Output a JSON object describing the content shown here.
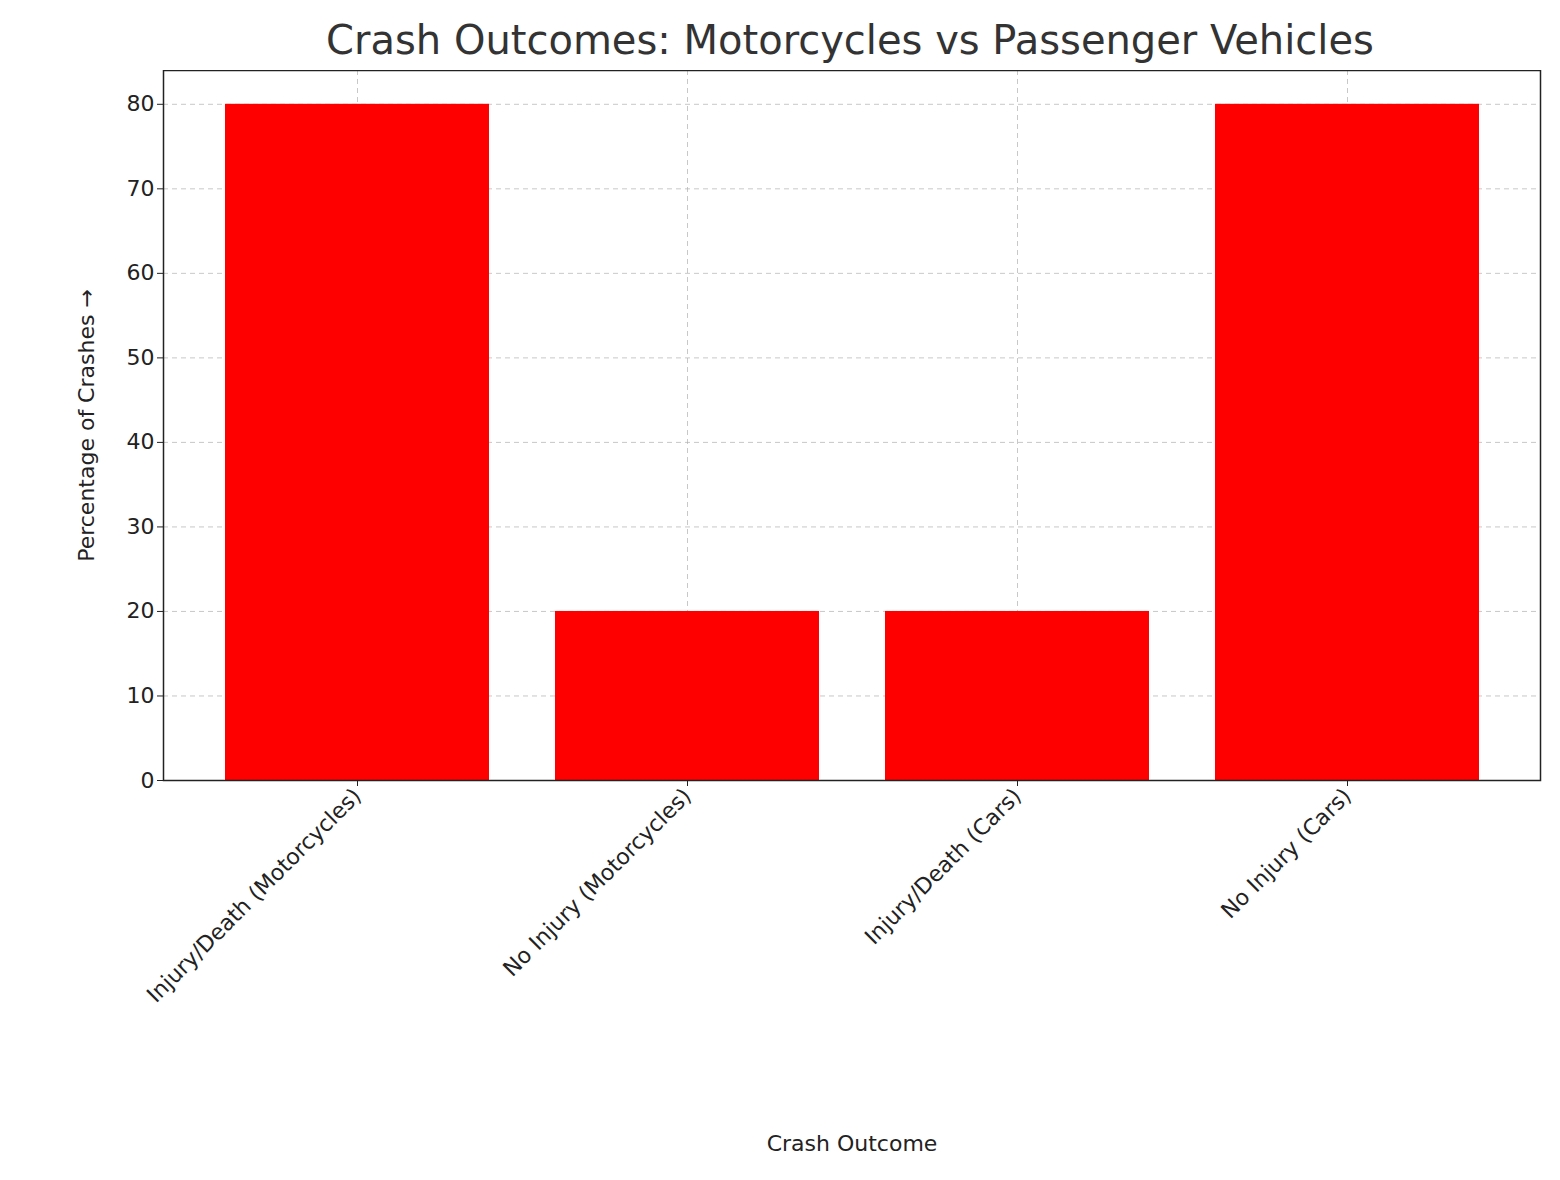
{
  "chart_data": {
    "type": "bar",
    "title": "Crash Outcomes: Motorcycles vs Passenger Vehicles",
    "x_label": "Crash Outcome",
    "y_label": "Percentage of Crashes",
    "categories": [
      "Injury/Death (Motorcycles)",
      "No Injury (Motorcycles)",
      "Injury/Death (Cars)",
      "No Injury (Cars)"
    ],
    "values": [
      80,
      20,
      20,
      80
    ],
    "color": "#ff0000",
    "ylim": [
      0,
      84
    ],
    "yticks": [
      0,
      10,
      20,
      30,
      40,
      50,
      60,
      70,
      80
    ],
    "grid": true
  }
}
